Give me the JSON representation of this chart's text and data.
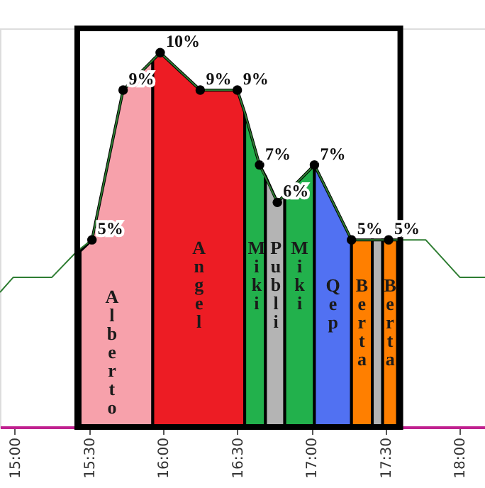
{
  "chart_data": {
    "type": "area",
    "xlim": [
      14.9,
      18.17
    ],
    "ylim": [
      0,
      10.65
    ],
    "xticks": [
      {
        "value": 15,
        "label": "15:00"
      },
      {
        "value": 15.5,
        "label": "15:30"
      },
      {
        "value": 16,
        "label": "16:00"
      },
      {
        "value": 16.5,
        "label": "16:30"
      },
      {
        "value": 17,
        "label": "17:00"
      },
      {
        "value": 17.5,
        "label": "17:30"
      },
      {
        "value": 18,
        "label": "18:00"
      }
    ],
    "tick_labels": "x",
    "grid": false,
    "series": [
      {
        "name": "Alberto",
        "color": "#f7a1ab",
        "x": [
          15.44,
          15.52,
          15.73,
          15.93
        ],
        "values": [
          4.7,
          5,
          9,
          9.8
        ]
      },
      {
        "name": "Angel",
        "color": "#ed1c24",
        "x": [
          15.93,
          15.98,
          16.25,
          16.5,
          16.55
        ],
        "values": [
          9.8,
          10,
          9,
          9,
          8.4
        ]
      },
      {
        "name": "Miki",
        "color": "#22b14c",
        "x": [
          16.55,
          16.65,
          16.69
        ],
        "values": [
          8.4,
          7,
          6.7
        ]
      },
      {
        "name": "Publi",
        "color": "#b4b4b4",
        "x": [
          16.69,
          16.77,
          16.82
        ],
        "values": [
          6.7,
          6,
          6.2
        ]
      },
      {
        "name": "Miki",
        "color": "#22b14c",
        "x": [
          16.82,
          17.02
        ],
        "values": [
          6.2,
          7
        ]
      },
      {
        "name": "Qep",
        "color": "#5171f2",
        "x": [
          17.02,
          17.27
        ],
        "values": [
          7,
          5
        ]
      },
      {
        "name": "Berta",
        "color": "#ff7f00",
        "x": [
          17.27,
          17.41
        ],
        "values": [
          5,
          5
        ]
      },
      {
        "color": "#b4b4b4",
        "x": [
          17.41,
          17.48
        ],
        "values": [
          5,
          5
        ]
      },
      {
        "name": "Berta",
        "color": "#ff7f00",
        "x": [
          17.48,
          17.58
        ],
        "values": [
          5,
          5
        ]
      },
      {
        "type": "line",
        "color": "#2e7d32",
        "x": [
          14.9,
          14.99,
          15.25,
          15.42,
          15.52,
          15.73,
          15.98,
          16.25,
          16.5,
          16.55,
          16.65,
          16.77,
          17.02,
          17.27,
          17.52,
          17.77,
          18.0,
          18.17
        ],
        "values": [
          3.6,
          4,
          4,
          4.7,
          5,
          9,
          10,
          9,
          9,
          8.4,
          7,
          6,
          7,
          5,
          5,
          5,
          4,
          4
        ]
      },
      {
        "type": "scatter",
        "marker": "circle",
        "color": "#000000",
        "x": [
          15.52,
          15.73,
          15.98,
          16.25,
          16.5,
          16.65,
          16.77,
          17.02,
          17.27,
          17.52
        ],
        "values": [
          5,
          9,
          10,
          9,
          9,
          7,
          6,
          7,
          5,
          5
        ],
        "value_labels": [
          "5%",
          "9%",
          "10%",
          "9%",
          "9%",
          "7%",
          "6%",
          "7%",
          "5%",
          "5%"
        ]
      }
    ]
  }
}
